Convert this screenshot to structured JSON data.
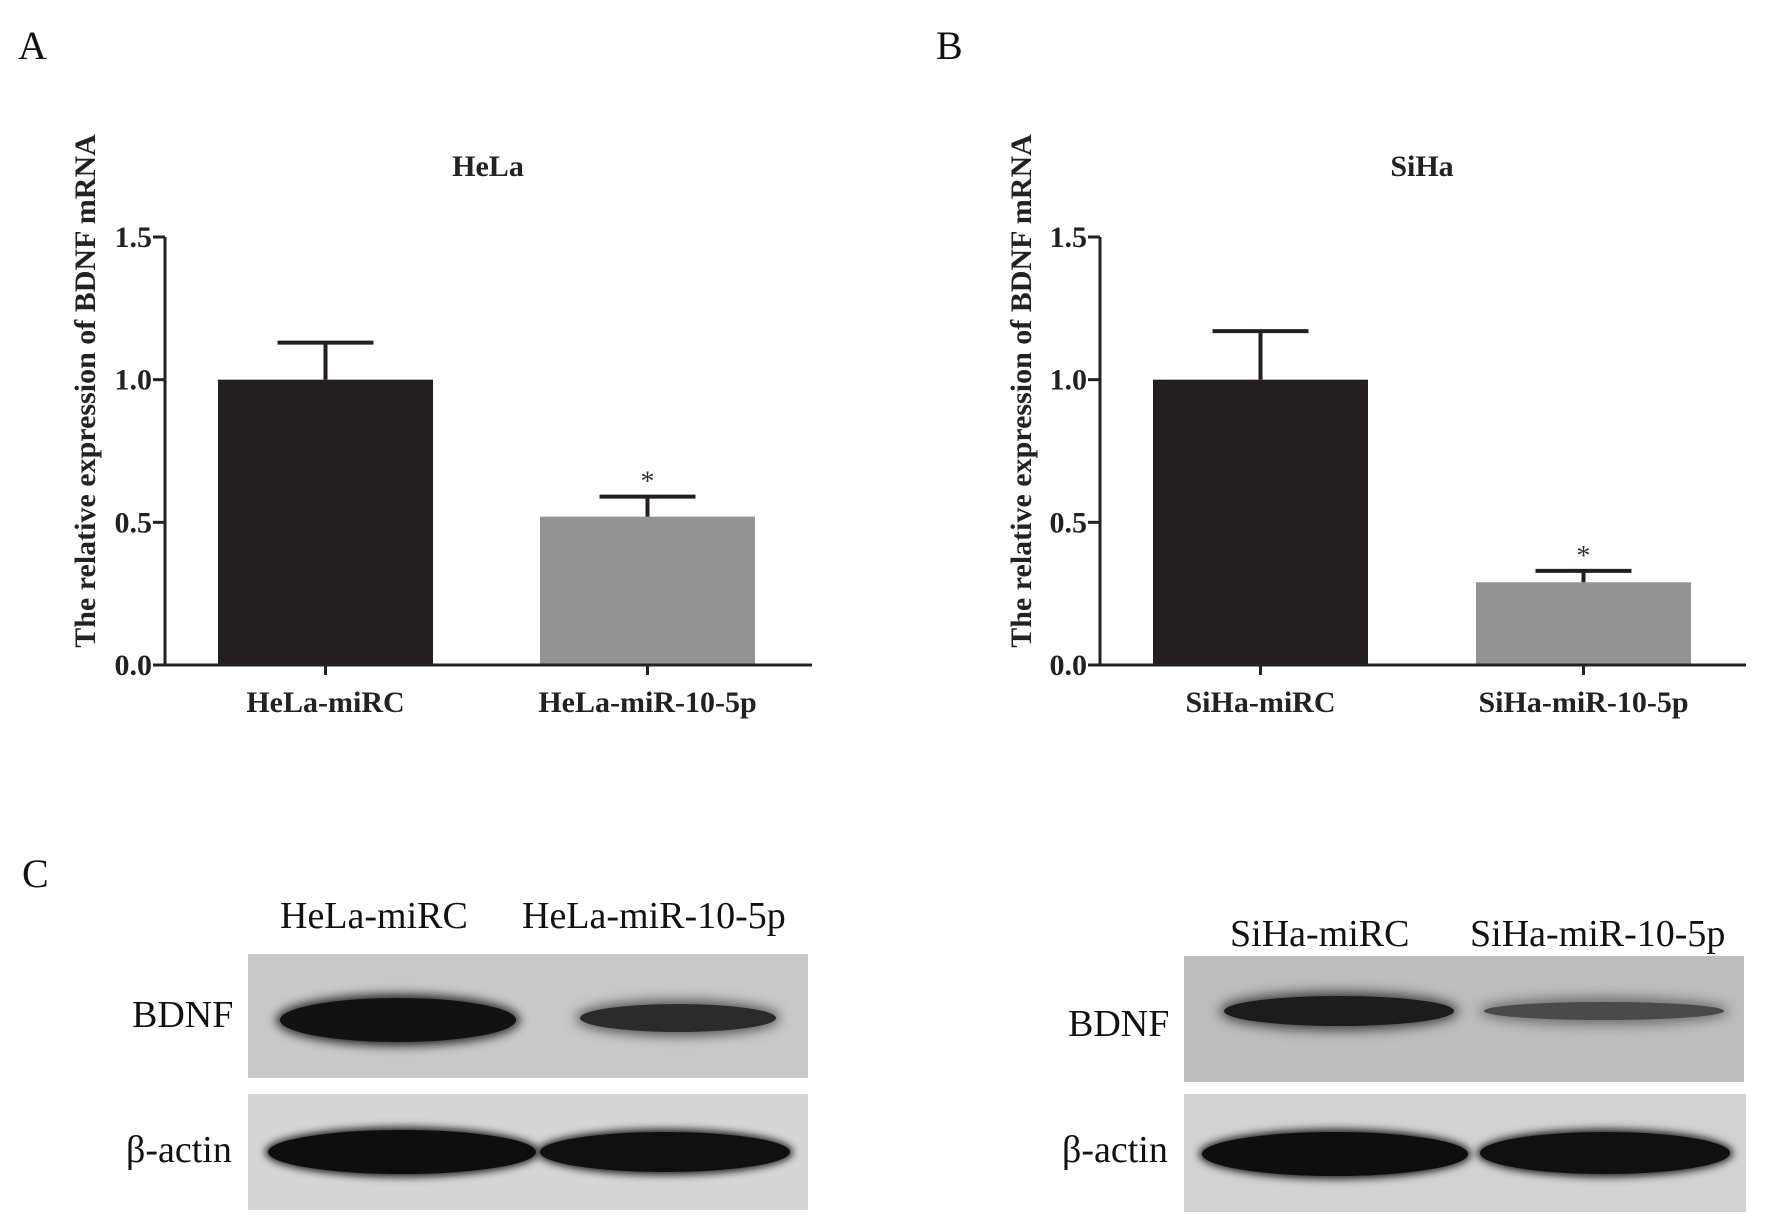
{
  "panels": {
    "a": "A",
    "b": "B",
    "c": "C"
  },
  "chart_data": [
    {
      "type": "bar",
      "title": "HeLa",
      "xlabel": "",
      "ylabel": "The relative expression of BDNF mRNA",
      "ylim": [
        0,
        1.5
      ],
      "yticks": [
        "0.0",
        "0.5",
        "1.0",
        "1.5"
      ],
      "categories": [
        "HeLa-miRC",
        "HeLa-miR-10-5p"
      ],
      "values": [
        1.0,
        0.52
      ],
      "errors": [
        0.13,
        0.07
      ],
      "annotations": [
        "",
        "*"
      ],
      "colors": [
        "#231f20",
        "#939393"
      ],
      "grid": false
    },
    {
      "type": "bar",
      "title": "SiHa",
      "xlabel": "",
      "ylabel": "The relative expression of BDNF mRNA",
      "ylim": [
        0,
        1.5
      ],
      "yticks": [
        "0.0",
        "0.5",
        "1.0",
        "1.5"
      ],
      "categories": [
        "SiHa-miRC",
        "SiHa-miR-10-5p"
      ],
      "values": [
        1.0,
        0.29
      ],
      "errors": [
        0.17,
        0.04
      ],
      "annotations": [
        "",
        "*"
      ],
      "colors": [
        "#231f20",
        "#939393"
      ],
      "grid": false
    }
  ],
  "blots": [
    {
      "lanes": [
        "HeLa-miRC",
        "HeLa-miR-10-5p"
      ],
      "rows": [
        "BDNF",
        "β-actin"
      ]
    },
    {
      "lanes": [
        "SiHa-miRC",
        "SiHa-miR-10-5p"
      ],
      "rows": [
        "BDNF",
        "β-actin"
      ]
    }
  ]
}
